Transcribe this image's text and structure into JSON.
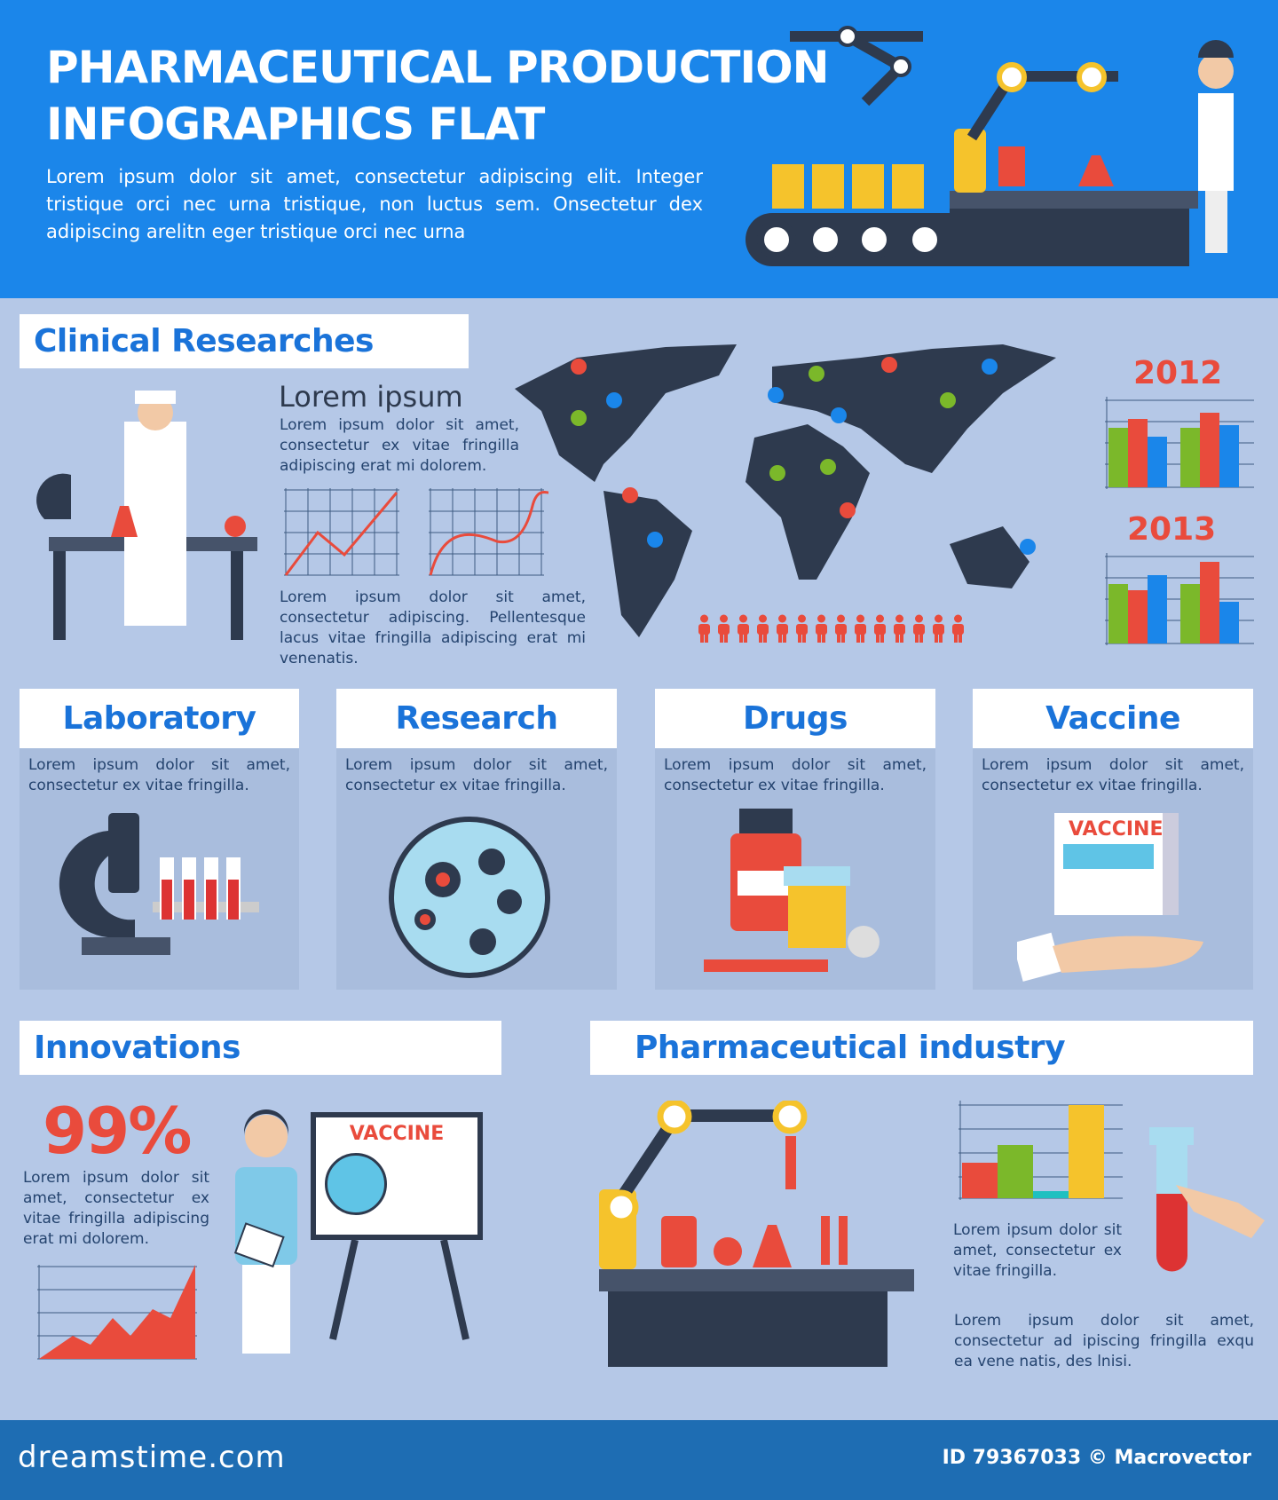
{
  "header": {
    "title": "PHARMACEUTICAL PRODUCTION\nINFOGRAPHICS FLAT",
    "subtitle": "Lorem ipsum dolor sit amet, consectetur adipiscing elit. Integer tristique orci nec urna tristique, non luctus sem. Onsectetur dex adipiscing arelitn eger tristique orci nec urna"
  },
  "clinical": {
    "title": "Clinical Researches",
    "heading": "Lorem ipsum",
    "text1": "Lorem ipsum dolor sit amet, consectetur ex vitae fringilla adipiscing erat mi dolorem.",
    "text2": "Lorem ipsum dolor sit amet, consectetur adipiscing. Pellentesque lacus vitae fringilla adipiscing erat mi venenatis.",
    "year1": "2012",
    "year2": "2013",
    "people_count": 14
  },
  "cards": [
    {
      "title": "Laboratory",
      "text": "Lorem ipsum dolor sit amet, consectetur ex vitae fringilla."
    },
    {
      "title": "Research",
      "text": "Lorem ipsum dolor sit amet, consectetur ex vitae fringilla."
    },
    {
      "title": "Drugs",
      "text": "Lorem ipsum dolor sit amet, consectetur ex vitae fringilla."
    },
    {
      "title": "Vaccine",
      "text": "Lorem ipsum dolor sit amet, consectetur ex vitae fringilla.",
      "box_label": "VACCINE"
    }
  ],
  "innovations": {
    "title": "Innovations",
    "percent": "99%",
    "text": "Lorem ipsum dolor sit amet, consectetur ex vitae fringilla adipiscing erat mi dolorem.",
    "board_label": "VACCINE"
  },
  "industry": {
    "title": "Pharmaceutical industry",
    "text1": "Lorem ipsum dolor sit amet, consectetur ex vitae fringilla.",
    "text2": "Lorem ipsum dolor sit amet, consectetur ad ipiscing fringilla exqu ea vene natis, des lnisi."
  },
  "footer": {
    "brand": "dreamstime.com",
    "credit": "ID 79367033 © Macrovector"
  },
  "colors": {
    "header_blue": "#1b86ea",
    "accent_red": "#e94b3c",
    "green": "#7bb82a",
    "blue": "#1a86ea",
    "yellow": "#f5c32c",
    "navy": "#2e3a4e"
  }
}
